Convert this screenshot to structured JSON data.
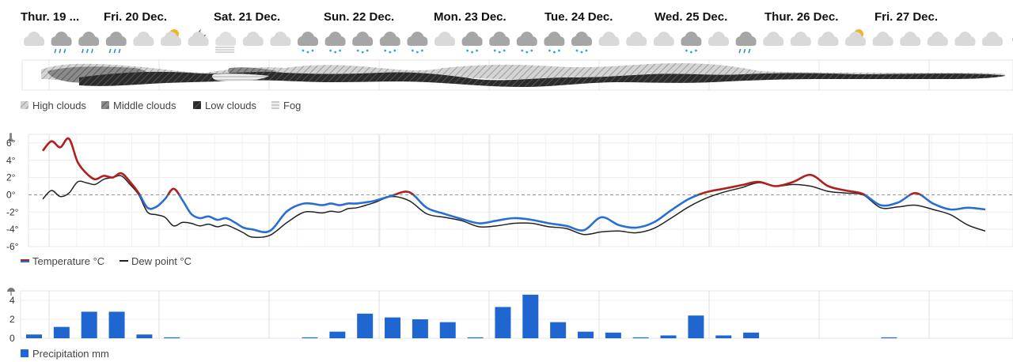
{
  "days": [
    "Thur. 19 ...",
    "Fri. 20 Dec.",
    "Sat. 21 Dec.",
    "Sun. 22 Dec.",
    "Mon. 23 Dec.",
    "Tue. 24 Dec.",
    "Wed. 25 Dec.",
    "Thur. 26 Dec.",
    "Fri. 27 Dec."
  ],
  "icons": [
    "cloud-icon",
    "cloud-rain-icon",
    "cloud-rain-icon",
    "cloud-rain-icon",
    "cloud-icon",
    "sun-cloud-icon",
    "moon-cloud-icon",
    "fog-icon",
    "cloud-icon",
    "cloud-icon",
    "cloud-snow-icon",
    "cloud-snow-icon",
    "cloud-snow-icon",
    "cloud-snow-icon",
    "cloud-snow-icon",
    "cloud-icon",
    "cloud-snow-icon",
    "cloud-snow-icon",
    "cloud-snow-icon",
    "cloud-snow-icon",
    "cloud-snow-icon",
    "cloud-icon",
    "cloud-icon",
    "cloud-icon",
    "cloud-snow-icon",
    "cloud-icon",
    "cloud-rain-icon",
    "cloud-icon",
    "cloud-icon",
    "cloud-icon",
    "sun-cloud-icon",
    "cloud-icon",
    "cloud-icon",
    "cloud-icon",
    "cloud-icon",
    "cloud-icon",
    "moon-icon"
  ],
  "cloud_legend": {
    "high": "High clouds",
    "middle": "Middle clouds",
    "low": "Low clouds",
    "fog": "Fog"
  },
  "temp_legend": {
    "temperature": "Temperature °C",
    "dewpoint": "Dew point °C"
  },
  "precip_legend": "Precipitation mm",
  "colors": {
    "temp_warm": "#b21f1f",
    "temp_cold": "#2a6ed4",
    "dewpoint": "#222222",
    "precip": "#1f66d1",
    "grid": "#e6e6e6"
  },
  "chart_data": [
    {
      "type": "line",
      "yticks": [
        "6°",
        "4°",
        "2°",
        "0°",
        "-2°",
        "-4°",
        "-6°"
      ],
      "ylim": [
        -6,
        7
      ],
      "xlim": [
        0,
        216
      ],
      "series": [
        {
          "name": "Temperature °C",
          "x": [
            0,
            2,
            4,
            6,
            8,
            10,
            12,
            14,
            16,
            18,
            20,
            22,
            24,
            26,
            28,
            30,
            32,
            34,
            36,
            38,
            40,
            42,
            44,
            46,
            48,
            52,
            56,
            60,
            64,
            66,
            68,
            70,
            72,
            76,
            80,
            84,
            88,
            92,
            96,
            100,
            104,
            108,
            112,
            116,
            120,
            124,
            128,
            132,
            136,
            140,
            144,
            148,
            152,
            156,
            160,
            164,
            168,
            172,
            176,
            180,
            184,
            188,
            192,
            196,
            200,
            204,
            208,
            212,
            216
          ],
          "y": [
            5.1,
            6.2,
            5.5,
            6.5,
            3.8,
            2.5,
            1.8,
            2.2,
            2.0,
            2.5,
            1.5,
            0.2,
            -1.5,
            -1.4,
            -0.5,
            0.7,
            -0.6,
            -2.2,
            -2.7,
            -2.5,
            -2.9,
            -2.7,
            -3.2,
            -3.8,
            -4.0,
            -4.2,
            -1.9,
            -1.0,
            -1.2,
            -1.0,
            -1.2,
            -1.0,
            -1.0,
            -0.7,
            -0.1,
            0.3,
            -1.5,
            -2.2,
            -2.8,
            -3.3,
            -3.0,
            -2.7,
            -2.9,
            -3.3,
            -3.6,
            -4.1,
            -2.6,
            -3.5,
            -3.8,
            -3.2,
            -1.8,
            -0.5,
            0.3,
            0.7,
            1.1,
            1.5,
            1.0,
            1.5,
            2.3,
            1.0,
            0.5,
            0.1,
            -1.2,
            -0.9,
            0.2,
            -1.0,
            -1.7,
            -1.5,
            -1.7
          ]
        },
        {
          "name": "Dew point °C",
          "x": [
            0,
            2,
            4,
            6,
            8,
            10,
            12,
            14,
            16,
            18,
            20,
            22,
            24,
            26,
            28,
            30,
            32,
            34,
            36,
            38,
            40,
            42,
            44,
            46,
            48,
            52,
            56,
            60,
            64,
            66,
            68,
            70,
            72,
            76,
            80,
            84,
            88,
            92,
            96,
            100,
            104,
            108,
            112,
            116,
            120,
            124,
            128,
            132,
            136,
            140,
            144,
            148,
            152,
            156,
            160,
            164,
            168,
            172,
            176,
            180,
            184,
            188,
            192,
            196,
            200,
            204,
            208,
            212,
            216
          ],
          "y": [
            -0.5,
            0.5,
            -0.2,
            0.2,
            1.5,
            1.4,
            1.2,
            1.8,
            2.0,
            2.2,
            1.2,
            0.0,
            -2.0,
            -2.3,
            -2.6,
            -3.6,
            -3.2,
            -3.3,
            -3.6,
            -3.4,
            -3.7,
            -3.5,
            -3.9,
            -4.4,
            -4.9,
            -4.7,
            -3.2,
            -2.0,
            -2.1,
            -1.9,
            -2.0,
            -1.6,
            -1.5,
            -0.9,
            -0.2,
            -0.7,
            -2.2,
            -2.6,
            -3.0,
            -3.7,
            -3.6,
            -3.3,
            -3.3,
            -3.7,
            -3.9,
            -4.6,
            -4.3,
            -4.2,
            -4.4,
            -3.9,
            -2.7,
            -1.4,
            -0.4,
            0.3,
            0.8,
            1.4,
            1.0,
            1.2,
            1.0,
            0.4,
            0.2,
            0.0,
            -1.5,
            -1.4,
            -1.2,
            -1.7,
            -2.3,
            -3.5,
            -4.2
          ]
        }
      ]
    },
    {
      "type": "bar",
      "yticks": [
        "4",
        "2",
        "0"
      ],
      "ylim": [
        0,
        5
      ],
      "x": [
        0,
        6,
        12,
        18,
        24,
        30,
        36,
        42,
        48,
        54,
        60,
        66,
        72,
        78,
        84,
        90,
        96,
        102,
        108,
        114,
        120,
        126,
        132,
        138,
        144,
        150,
        156,
        162,
        168,
        174,
        180,
        186,
        192,
        198,
        204,
        210
      ],
      "values": [
        0.4,
        1.2,
        2.8,
        2.8,
        0.4,
        0.1,
        0,
        0,
        0,
        0,
        0.1,
        0.7,
        2.6,
        2.2,
        2.0,
        1.7,
        0.1,
        3.3,
        4.6,
        1.7,
        0.7,
        0.6,
        0.1,
        0.3,
        2.4,
        0.3,
        0.6,
        0,
        0,
        0,
        0,
        0.1,
        0,
        0,
        0,
        0
      ]
    }
  ]
}
